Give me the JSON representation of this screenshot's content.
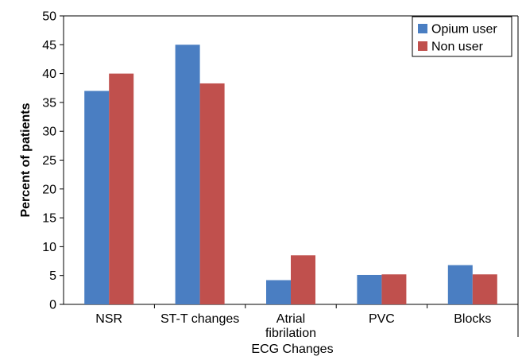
{
  "chart_data": {
    "type": "bar",
    "title": "",
    "xlabel": "ECG Changes",
    "ylabel": "Percent of patients",
    "ylim": [
      0,
      50
    ],
    "yticks": [
      0,
      5,
      10,
      15,
      20,
      25,
      30,
      35,
      40,
      45,
      50
    ],
    "categories": [
      [
        "NSR"
      ],
      [
        "ST-T changes"
      ],
      [
        "Atrial",
        "fibrilation"
      ],
      [
        "PVC"
      ],
      [
        "Blocks"
      ]
    ],
    "series": [
      {
        "name": "Opium user",
        "color": "#4a7ec2",
        "values": [
          37,
          45,
          4.2,
          5.1,
          6.8
        ]
      },
      {
        "name": "Non user",
        "color": "#c0504d",
        "values": [
          40,
          38.3,
          8.5,
          5.2,
          5.2
        ]
      }
    ],
    "legend": {
      "position": "top-right"
    },
    "grid": false
  }
}
